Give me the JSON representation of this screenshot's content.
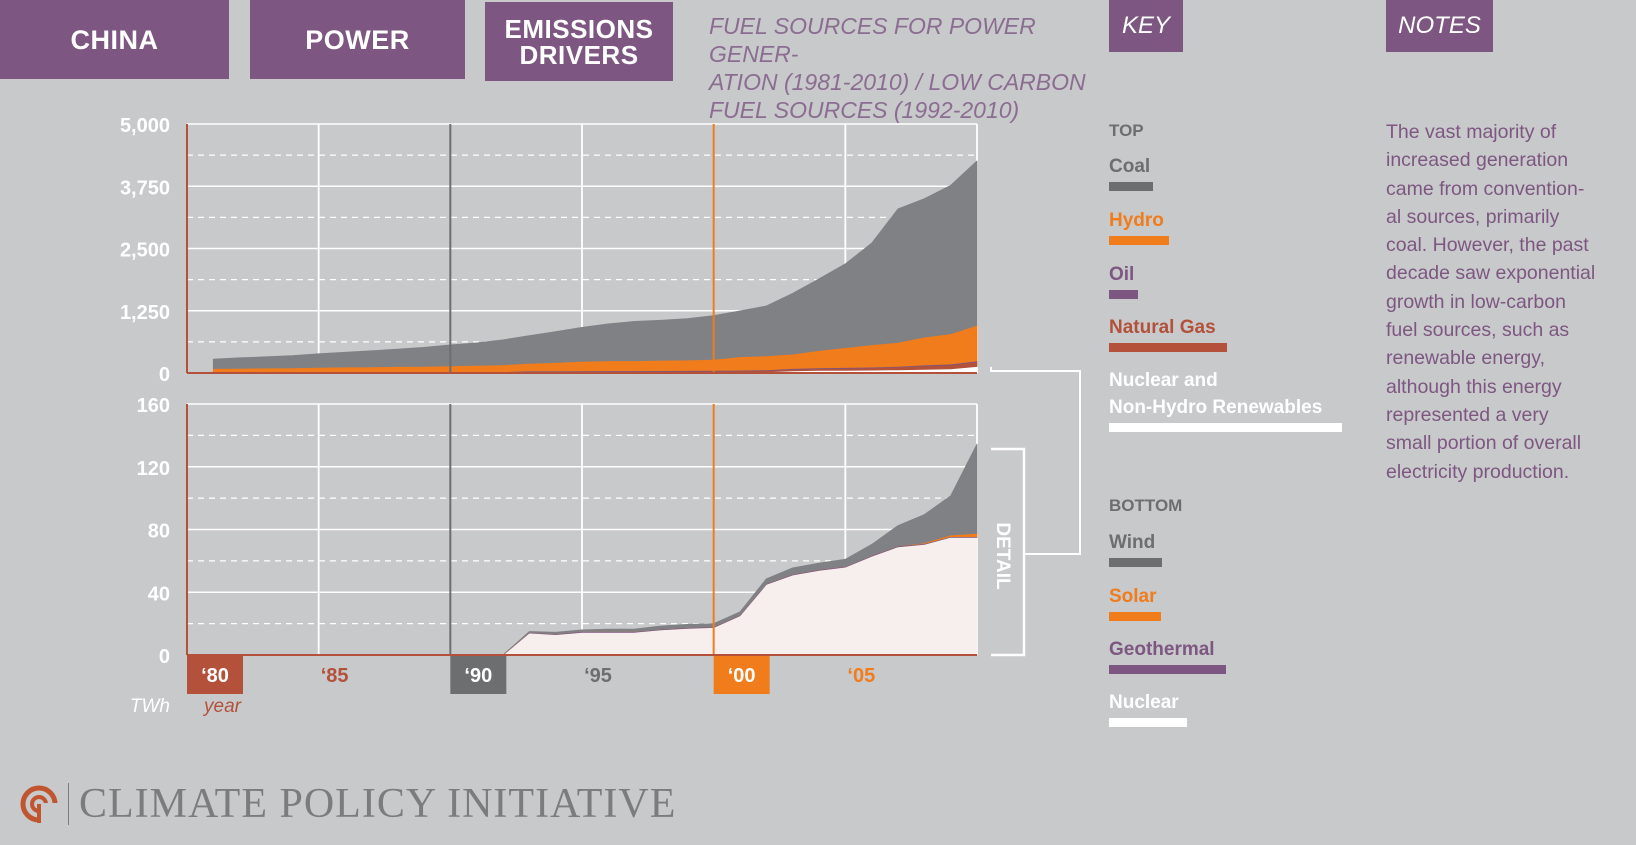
{
  "header": {
    "tab_country": "CHINA",
    "tab_sector": "POWER",
    "tab_drivers_line1": "EMISSIONS",
    "tab_drivers_line2": "DRIVERS",
    "subtitle_line1": "FUEL SOURCES FOR POWER GENER-",
    "subtitle_line2": "ATION (1981-2010) / LOW CARBON",
    "subtitle_line3": "FUEL SOURCES (1992-2010)"
  },
  "key": {
    "tab_label": "KEY",
    "top_heading": "TOP",
    "bottom_heading": "BOTTOM",
    "top_items": [
      {
        "label": "Coal",
        "color": "#808184"
      },
      {
        "label": "Hydro",
        "color": "#f07c1c"
      },
      {
        "label": "Oil",
        "color": "#7d5781"
      },
      {
        "label": "Natural Gas",
        "color": "#b3513a"
      },
      {
        "label_line1": "Nuclear and",
        "label_line2": "Non-Hydro Renewables",
        "color": "#ffffff"
      }
    ],
    "bottom_items": [
      {
        "label": "Wind",
        "color": "#808184"
      },
      {
        "label": "Solar",
        "color": "#f07c1c"
      },
      {
        "label": "Geothermal",
        "color": "#7d5781"
      },
      {
        "label": "Nuclear",
        "color": "#ffffff"
      }
    ]
  },
  "notes": {
    "tab_label": "NOTES",
    "lines": [
      "The vast majority of",
      "increased generation",
      "came from convention-",
      "al sources, primarily",
      "coal. However, the past",
      "decade saw exponential",
      "growth in low-carbon",
      "fuel sources, such as",
      "renewable energy,",
      "although this energy",
      "represented a very",
      "small portion of overall",
      "electricity production."
    ]
  },
  "footer": {
    "brand": "CLIMATE POLICY INITIATIVE"
  },
  "chart_data": [
    {
      "type": "area",
      "stacked": true,
      "x": [
        1981,
        1982,
        1983,
        1984,
        1985,
        1986,
        1987,
        1988,
        1989,
        1990,
        1991,
        1992,
        1993,
        1994,
        1995,
        1996,
        1997,
        1998,
        1999,
        2000,
        2001,
        2002,
        2003,
        2004,
        2005,
        2006,
        2007,
        2008,
        2009,
        2010
      ],
      "xlim": [
        1980,
        2010
      ],
      "ylim": [
        0,
        5000
      ],
      "yticks": [
        "5,000",
        "3,750",
        "2,500",
        "1,250",
        "0"
      ],
      "grid": true,
      "series": [
        {
          "name": "Nuclear and Non-Hydro Renewables",
          "color": "#ffffff",
          "values": [
            0,
            0,
            0,
            0,
            0,
            0,
            0,
            0,
            0,
            0,
            0,
            0,
            15,
            14,
            16,
            16,
            16,
            17,
            18,
            18,
            20,
            25,
            45,
            52,
            55,
            58,
            65,
            75,
            85,
            130
          ]
        },
        {
          "name": "Natural Gas",
          "color": "#b3513a",
          "values": [
            10,
            10,
            10,
            10,
            10,
            10,
            10,
            10,
            10,
            10,
            10,
            10,
            12,
            12,
            14,
            15,
            15,
            16,
            18,
            20,
            22,
            25,
            30,
            35,
            40,
            45,
            55,
            70,
            80,
            95
          ]
        },
        {
          "name": "Oil",
          "color": "#7d5781",
          "values": [
            15,
            15,
            15,
            15,
            15,
            15,
            15,
            15,
            15,
            15,
            15,
            15,
            15,
            15,
            15,
            15,
            15,
            15,
            15,
            15,
            15,
            15,
            15,
            15,
            15,
            15,
            15,
            15,
            15,
            15
          ]
        },
        {
          "name": "Hydro",
          "color": "#f07c1c",
          "values": [
            65,
            70,
            75,
            80,
            90,
            95,
            100,
            105,
            110,
            120,
            130,
            140,
            150,
            170,
            190,
            200,
            200,
            210,
            210,
            220,
            270,
            280,
            290,
            350,
            400,
            450,
            480,
            560,
            610,
            720
          ]
        },
        {
          "name": "Coal",
          "color": "#808184",
          "values": [
            190,
            210,
            225,
            245,
            270,
            295,
            320,
            350,
            380,
            420,
            450,
            500,
            560,
            620,
            680,
            740,
            790,
            800,
            830,
            880,
            920,
            1000,
            1220,
            1440,
            1680,
            2040,
            2680,
            2780,
            2980,
            3300
          ]
        }
      ]
    },
    {
      "type": "area",
      "stacked": true,
      "x": [
        1980,
        1990,
        1992,
        1993,
        1994,
        1995,
        1996,
        1997,
        1998,
        1999,
        2000,
        2001,
        2002,
        2003,
        2004,
        2005,
        2006,
        2007,
        2008,
        2009,
        2010
      ],
      "xlim": [
        1980,
        2010
      ],
      "ylim": [
        0,
        160
      ],
      "yticks": [
        "160",
        "120",
        "80",
        "40",
        "0"
      ],
      "xticks": [
        "‘80",
        "‘85",
        "‘90",
        "‘95",
        "‘00",
        "‘05"
      ],
      "xlabel": "year",
      "ylabel": "TWh",
      "grid": true,
      "annotation": "DETAIL",
      "series": [
        {
          "name": "Nuclear",
          "color": "#f6efee",
          "values": [
            0,
            0,
            0,
            14,
            13,
            14.5,
            14.5,
            14.5,
            16,
            17,
            17.5,
            25,
            45,
            51,
            54,
            56,
            63,
            69,
            70.5,
            75,
            75
          ]
        },
        {
          "name": "Geothermal",
          "color": "#7d5781",
          "values": [
            0,
            0,
            0,
            0.5,
            0.5,
            0.5,
            0.5,
            0.5,
            0.5,
            0.5,
            0.5,
            0.5,
            0.5,
            0.5,
            0.5,
            0.5,
            0.5,
            0.5,
            0.5,
            0.5,
            0.5
          ]
        },
        {
          "name": "Solar",
          "color": "#f07c1c",
          "values": [
            0,
            0,
            0,
            0,
            0,
            0,
            0,
            0,
            0,
            0,
            0,
            0,
            0,
            0,
            0,
            0,
            0,
            0,
            0.5,
            1,
            2
          ]
        },
        {
          "name": "Wind",
          "color": "#808184",
          "values": [
            0,
            0,
            0,
            0.5,
            1,
            1,
            1.5,
            1.5,
            2,
            2,
            2,
            2,
            3,
            4,
            4,
            4.5,
            7,
            13,
            18,
            25,
            57
          ]
        }
      ]
    }
  ]
}
